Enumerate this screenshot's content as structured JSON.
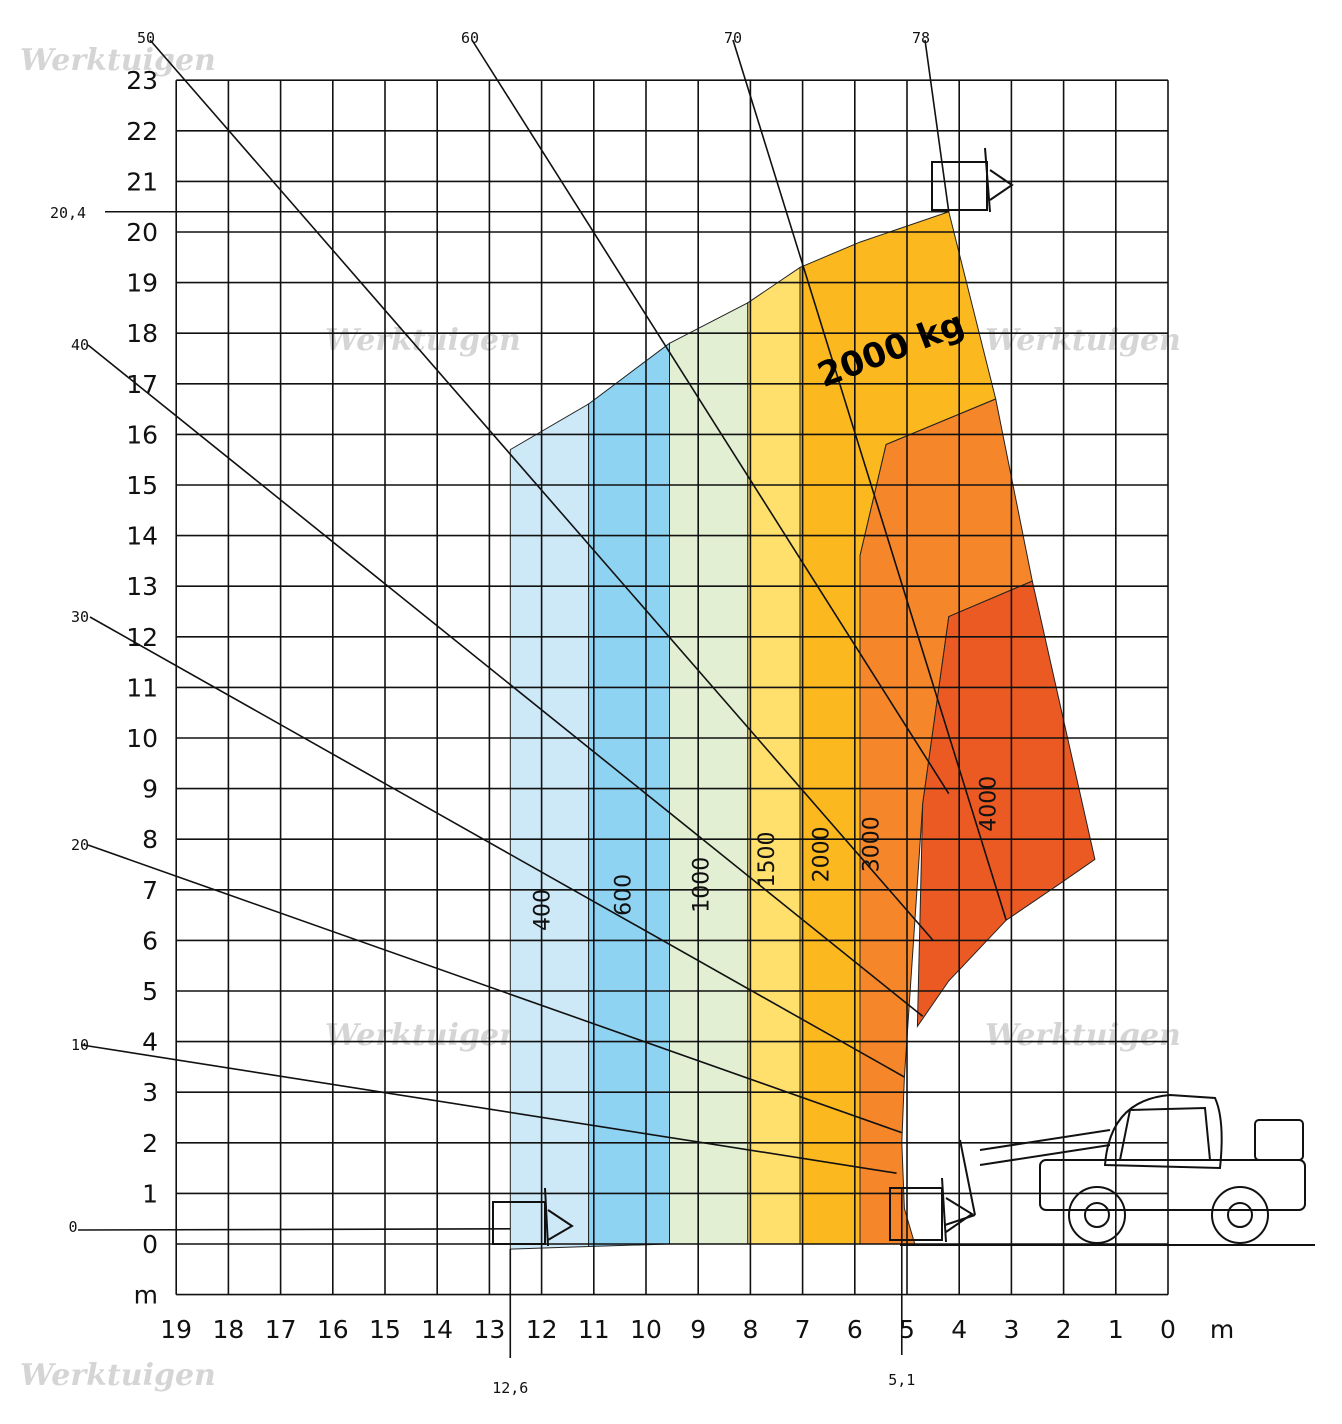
{
  "chart_data": {
    "type": "area",
    "title": "",
    "xlabel": "m",
    "ylabel": "m",
    "x_ticks": [
      19,
      18,
      17,
      16,
      15,
      14,
      13,
      12,
      11,
      10,
      9,
      8,
      7,
      6,
      5,
      4,
      3,
      2,
      1,
      0
    ],
    "y_ticks": [
      0,
      1,
      2,
      3,
      4,
      5,
      6,
      7,
      8,
      9,
      10,
      11,
      12,
      13,
      14,
      15,
      16,
      17,
      18,
      19,
      20,
      21,
      22,
      23
    ],
    "xlim": [
      19,
      0
    ],
    "ylim": [
      -1,
      23
    ],
    "x_reversed": true,
    "grid": true,
    "annotations": {
      "max_height_label": "20,4",
      "max_height_value": 20.4,
      "max_reach_label": "12,6",
      "max_reach_value": 12.6,
      "min_reach_label": "5,1",
      "min_reach_value": 5.1,
      "capacity_label": "2000 kg"
    },
    "boom_angles": [
      {
        "label": "0",
        "to": [
          12.6,
          0.3
        ]
      },
      {
        "label": "10",
        "to": [
          5.2,
          1.4
        ]
      },
      {
        "label": "20",
        "to": [
          5.1,
          2.2
        ]
      },
      {
        "label": "30",
        "to": [
          5.05,
          3.3
        ]
      },
      {
        "label": "40",
        "to": [
          4.7,
          4.5
        ]
      },
      {
        "label": "50",
        "to": [
          4.5,
          6.0
        ]
      },
      {
        "label": "60",
        "to": [
          4.2,
          8.9
        ]
      },
      {
        "label": "70",
        "to": [
          3.1,
          6.4
        ]
      },
      {
        "label": "78",
        "to": [
          4.2,
          20.4
        ]
      }
    ],
    "zones": [
      {
        "name": "400",
        "color": "#cde8f7",
        "x": [
          12.6,
          11.1
        ]
      },
      {
        "name": "600",
        "color": "#8fd3f3",
        "x": [
          11.1,
          9.55
        ]
      },
      {
        "name": "1000",
        "color": "#e2efd2",
        "x": [
          9.55,
          8.05
        ]
      },
      {
        "name": "1500",
        "color": "#ffe06c",
        "x": [
          8.05,
          7.05
        ]
      },
      {
        "name": "2000",
        "color": "#fbb91f",
        "x": [
          7.05,
          5.9
        ]
      },
      {
        "name": "3000",
        "color": "#f5862a",
        "x": [
          5.9,
          2.6
        ]
      },
      {
        "name": "4000",
        "color": "#ec5a24",
        "x": [
          4.7,
          1.4
        ]
      }
    ],
    "envelope_outline": [
      [
        12.6,
        -0.1
      ],
      [
        12.6,
        15.7
      ],
      [
        11.1,
        16.6
      ],
      [
        9.55,
        17.8
      ],
      [
        8.05,
        18.6
      ],
      [
        7.05,
        19.3
      ],
      [
        5.9,
        19.8
      ],
      [
        4.2,
        20.4
      ],
      [
        3.3,
        16.7
      ],
      [
        2.6,
        13.1
      ],
      [
        1.4,
        7.6
      ],
      [
        2.1,
        7.1
      ],
      [
        3.1,
        6.4
      ],
      [
        4.2,
        5.2
      ],
      [
        4.8,
        4.3
      ],
      [
        5.05,
        3.3
      ],
      [
        5.1,
        2.0
      ],
      [
        5.05,
        0.7
      ],
      [
        4.85,
        0.0
      ]
    ],
    "watermark": "Werktuigen"
  }
}
